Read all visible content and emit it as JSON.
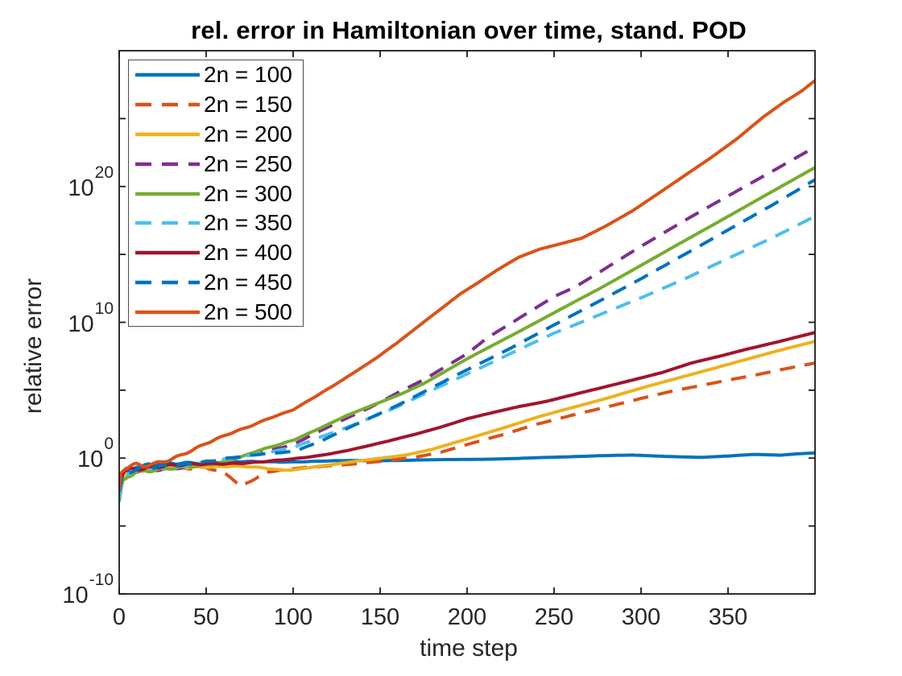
{
  "chart_data": {
    "type": "line",
    "title": "rel. error in Hamiltonian over time, stand. POD",
    "xlabel": "time step",
    "ylabel": "relative error",
    "grid": false,
    "legend_position": "top-left-inside",
    "axis_color": "#1a1a1a",
    "tick_text_color": "#262626",
    "x_axis": {
      "min": 0,
      "max": 400,
      "ticks": [
        0,
        50,
        100,
        150,
        200,
        250,
        300,
        350
      ],
      "tick_labels": [
        "0",
        "50",
        "100",
        "150",
        "200",
        "250",
        "300",
        "350"
      ]
    },
    "y_axis": {
      "scale": "log10",
      "min_exponent": -10,
      "max_exponent": 30,
      "tick_exponents": [
        -10,
        -5,
        0,
        5,
        10,
        15,
        20,
        25
      ],
      "labeled_exponents": [
        -10,
        0,
        10,
        20
      ],
      "label_base": "10"
    },
    "points_format": "[time_step, log10_of_relative_error]",
    "series": [
      {
        "name": "2n = 100",
        "color": "#0072BD",
        "line": "solid",
        "points_log10": [
          [
            0,
            -2.4
          ],
          [
            2,
            -1.35
          ],
          [
            4,
            -0.9
          ],
          [
            7,
            -0.75
          ],
          [
            10,
            -0.6
          ],
          [
            13,
            -0.72
          ],
          [
            17,
            -0.52
          ],
          [
            22,
            -0.44
          ],
          [
            30,
            -0.37
          ],
          [
            40,
            -0.33
          ],
          [
            55,
            -0.3
          ],
          [
            75,
            -0.28
          ],
          [
            100,
            -0.26
          ],
          [
            130,
            -0.2
          ],
          [
            160,
            -0.16
          ],
          [
            200,
            -0.1
          ],
          [
            230,
            -0.02
          ],
          [
            255,
            0.08
          ],
          [
            275,
            0.18
          ],
          [
            295,
            0.22
          ],
          [
            315,
            0.12
          ],
          [
            335,
            0.06
          ],
          [
            350,
            0.15
          ],
          [
            365,
            0.27
          ],
          [
            380,
            0.22
          ],
          [
            390,
            0.32
          ],
          [
            400,
            0.38
          ]
        ]
      },
      {
        "name": "2n = 150",
        "color": "#D95319",
        "line": "dashed",
        "points_log10": [
          [
            0,
            -2.6
          ],
          [
            2,
            -1.4
          ],
          [
            5,
            -1.05
          ],
          [
            9,
            -0.9
          ],
          [
            14,
            -0.97
          ],
          [
            20,
            -0.82
          ],
          [
            28,
            -0.72
          ],
          [
            38,
            -0.8
          ],
          [
            48,
            -0.72
          ],
          [
            58,
            -0.95
          ],
          [
            64,
            -1.4
          ],
          [
            70,
            -2.05
          ],
          [
            76,
            -1.65
          ],
          [
            84,
            -1.05
          ],
          [
            95,
            -0.85
          ],
          [
            110,
            -0.68
          ],
          [
            125,
            -0.52
          ],
          [
            140,
            -0.36
          ],
          [
            155,
            -0.18
          ],
          [
            170,
            0.05
          ],
          [
            185,
            0.45
          ],
          [
            200,
            1.0
          ],
          [
            220,
            1.7
          ],
          [
            240,
            2.5
          ],
          [
            260,
            3.15
          ],
          [
            280,
            3.75
          ],
          [
            300,
            4.4
          ],
          [
            320,
            5.0
          ],
          [
            335,
            5.35
          ],
          [
            350,
            5.75
          ],
          [
            365,
            6.1
          ],
          [
            380,
            6.5
          ],
          [
            400,
            7.0
          ]
        ]
      },
      {
        "name": "2n = 200",
        "color": "#EDB120",
        "line": "solid",
        "points_log10": [
          [
            0,
            -2.8
          ],
          [
            2,
            -1.5
          ],
          [
            5,
            -1.1
          ],
          [
            9,
            -0.95
          ],
          [
            15,
            -0.85
          ],
          [
            22,
            -0.78
          ],
          [
            30,
            -0.72
          ],
          [
            40,
            -0.68
          ],
          [
            52,
            -0.62
          ],
          [
            64,
            -0.58
          ],
          [
            76,
            -0.66
          ],
          [
            88,
            -0.82
          ],
          [
            95,
            -0.9
          ],
          [
            102,
            -0.82
          ],
          [
            112,
            -0.62
          ],
          [
            124,
            -0.45
          ],
          [
            136,
            -0.25
          ],
          [
            150,
            -0.02
          ],
          [
            165,
            0.25
          ],
          [
            180,
            0.65
          ],
          [
            200,
            1.4
          ],
          [
            220,
            2.2
          ],
          [
            240,
            3.0
          ],
          [
            260,
            3.7
          ],
          [
            280,
            4.4
          ],
          [
            300,
            5.15
          ],
          [
            320,
            5.85
          ],
          [
            340,
            6.55
          ],
          [
            360,
            7.25
          ],
          [
            380,
            7.95
          ],
          [
            400,
            8.6
          ]
        ]
      },
      {
        "name": "2n = 250",
        "color": "#7E2F8E",
        "line": "dashed",
        "points_log10": [
          [
            0,
            -2.7
          ],
          [
            2,
            -1.45
          ],
          [
            5,
            -1.1
          ],
          [
            9,
            -0.95
          ],
          [
            14,
            -0.88
          ],
          [
            20,
            -0.82
          ],
          [
            28,
            -0.75
          ],
          [
            36,
            -0.66
          ],
          [
            44,
            -0.55
          ],
          [
            52,
            -0.4
          ],
          [
            60,
            -0.2
          ],
          [
            70,
            0.12
          ],
          [
            80,
            0.5
          ],
          [
            90,
            0.7
          ],
          [
            100,
            1.0
          ],
          [
            115,
            1.95
          ],
          [
            130,
            2.9
          ],
          [
            145,
            3.8
          ],
          [
            160,
            4.8
          ],
          [
            175,
            5.75
          ],
          [
            200,
            7.7
          ],
          [
            212,
            8.9
          ],
          [
            225,
            9.9
          ],
          [
            250,
            11.9
          ],
          [
            262,
            12.6
          ],
          [
            275,
            13.6
          ],
          [
            300,
            15.6
          ],
          [
            325,
            17.5
          ],
          [
            350,
            19.3
          ],
          [
            375,
            21.1
          ],
          [
            400,
            22.9
          ]
        ]
      },
      {
        "name": "2n = 300",
        "color": "#77AC30",
        "line": "solid",
        "points_log10": [
          [
            0,
            -3.2
          ],
          [
            2,
            -1.7
          ],
          [
            5,
            -1.25
          ],
          [
            9,
            -1.05
          ],
          [
            14,
            -0.95
          ],
          [
            20,
            -0.88
          ],
          [
            28,
            -0.8
          ],
          [
            36,
            -0.72
          ],
          [
            44,
            -0.6
          ],
          [
            52,
            -0.45
          ],
          [
            60,
            -0.25
          ],
          [
            70,
            0.1
          ],
          [
            80,
            0.55
          ],
          [
            90,
            0.9
          ],
          [
            100,
            1.3
          ],
          [
            115,
            2.2
          ],
          [
            130,
            3.1
          ],
          [
            145,
            3.85
          ],
          [
            160,
            4.6
          ],
          [
            175,
            5.5
          ],
          [
            200,
            7.3
          ],
          [
            225,
            9.0
          ],
          [
            250,
            10.7
          ],
          [
            275,
            12.4
          ],
          [
            300,
            14.2
          ],
          [
            325,
            16.0
          ],
          [
            350,
            17.8
          ],
          [
            375,
            19.6
          ],
          [
            400,
            21.4
          ]
        ]
      },
      {
        "name": "2n = 350",
        "color": "#4DBEEE",
        "line": "dashed",
        "points_log10": [
          [
            0,
            -3.0
          ],
          [
            2,
            -1.6
          ],
          [
            5,
            -1.2
          ],
          [
            9,
            -1.0
          ],
          [
            14,
            -0.9
          ],
          [
            20,
            -0.8
          ],
          [
            28,
            -0.68
          ],
          [
            36,
            -0.55
          ],
          [
            44,
            -0.42
          ],
          [
            52,
            -0.28
          ],
          [
            60,
            -0.1
          ],
          [
            70,
            0.1
          ],
          [
            80,
            0.3
          ],
          [
            90,
            0.55
          ],
          [
            100,
            0.8
          ],
          [
            115,
            1.5
          ],
          [
            130,
            2.2
          ],
          [
            145,
            3.0
          ],
          [
            160,
            3.8
          ],
          [
            180,
            5.0
          ],
          [
            200,
            6.2
          ],
          [
            225,
            7.7
          ],
          [
            250,
            9.2
          ],
          [
            275,
            10.5
          ],
          [
            300,
            11.8
          ],
          [
            325,
            13.2
          ],
          [
            350,
            14.7
          ],
          [
            375,
            16.2
          ],
          [
            400,
            17.8
          ]
        ]
      },
      {
        "name": "2n = 400",
        "color": "#A2142F",
        "line": "solid",
        "points_log10": [
          [
            0,
            -2.3
          ],
          [
            2,
            -1.2
          ],
          [
            5,
            -0.85
          ],
          [
            9,
            -0.7
          ],
          [
            14,
            -0.78
          ],
          [
            20,
            -0.62
          ],
          [
            28,
            -0.55
          ],
          [
            38,
            -0.5
          ],
          [
            50,
            -0.45
          ],
          [
            62,
            -0.4
          ],
          [
            75,
            -0.32
          ],
          [
            88,
            -0.2
          ],
          [
            100,
            -0.08
          ],
          [
            112,
            0.12
          ],
          [
            125,
            0.42
          ],
          [
            140,
            0.82
          ],
          [
            155,
            1.25
          ],
          [
            170,
            1.75
          ],
          [
            185,
            2.3
          ],
          [
            200,
            2.9
          ],
          [
            215,
            3.35
          ],
          [
            230,
            3.8
          ],
          [
            246,
            4.2
          ],
          [
            262,
            4.7
          ],
          [
            278,
            5.2
          ],
          [
            295,
            5.75
          ],
          [
            312,
            6.3
          ],
          [
            329,
            7.0
          ],
          [
            345,
            7.5
          ],
          [
            360,
            8.0
          ],
          [
            380,
            8.6
          ],
          [
            400,
            9.25
          ]
        ]
      },
      {
        "name": "2n = 450",
        "color": "#0072BD",
        "line": "dashed",
        "points_log10": [
          [
            0,
            -2.5
          ],
          [
            2,
            -1.3
          ],
          [
            5,
            -1.0
          ],
          [
            9,
            -0.85
          ],
          [
            14,
            -0.75
          ],
          [
            20,
            -0.68
          ],
          [
            28,
            -0.6
          ],
          [
            36,
            -0.48
          ],
          [
            44,
            -0.35
          ],
          [
            52,
            -0.2
          ],
          [
            60,
            -0.05
          ],
          [
            70,
            0.1
          ],
          [
            80,
            0.25
          ],
          [
            90,
            0.38
          ],
          [
            100,
            0.5
          ],
          [
            115,
            1.2
          ],
          [
            130,
            2.1
          ],
          [
            145,
            3.0
          ],
          [
            160,
            3.9
          ],
          [
            180,
            5.2
          ],
          [
            200,
            6.5
          ],
          [
            225,
            8.1
          ],
          [
            250,
            9.8
          ],
          [
            275,
            11.5
          ],
          [
            300,
            13.2
          ],
          [
            325,
            15.0
          ],
          [
            350,
            16.8
          ],
          [
            375,
            18.6
          ],
          [
            400,
            20.5
          ]
        ]
      },
      {
        "name": "2n = 500",
        "color": "#D95319",
        "line": "solid",
        "points_log10": [
          [
            0,
            -2.4
          ],
          [
            1,
            -1.1
          ],
          [
            3,
            -0.75
          ],
          [
            6,
            -0.6
          ],
          [
            10,
            -0.5
          ],
          [
            14,
            -0.56
          ],
          [
            18,
            -0.44
          ],
          [
            23,
            -0.3
          ],
          [
            28,
            -0.12
          ],
          [
            33,
            0.1
          ],
          [
            38,
            0.35
          ],
          [
            44,
            0.7
          ],
          [
            50,
            1.05
          ],
          [
            58,
            1.5
          ],
          [
            66,
            1.92
          ],
          [
            75,
            2.35
          ],
          [
            85,
            2.9
          ],
          [
            100,
            3.55
          ],
          [
            112,
            4.45
          ],
          [
            124,
            5.4
          ],
          [
            136,
            6.4
          ],
          [
            148,
            7.4
          ],
          [
            160,
            8.5
          ],
          [
            172,
            9.7
          ],
          [
            184,
            10.9
          ],
          [
            196,
            12.1
          ],
          [
            206,
            12.9
          ],
          [
            218,
            13.9
          ],
          [
            230,
            14.8
          ],
          [
            242,
            15.4
          ],
          [
            254,
            15.8
          ],
          [
            266,
            16.2
          ],
          [
            280,
            17.1
          ],
          [
            295,
            18.2
          ],
          [
            310,
            19.5
          ],
          [
            325,
            20.8
          ],
          [
            340,
            22.1
          ],
          [
            355,
            23.5
          ],
          [
            370,
            25.1
          ],
          [
            382,
            26.2
          ],
          [
            392,
            27.0
          ],
          [
            400,
            27.8
          ]
        ]
      }
    ]
  }
}
